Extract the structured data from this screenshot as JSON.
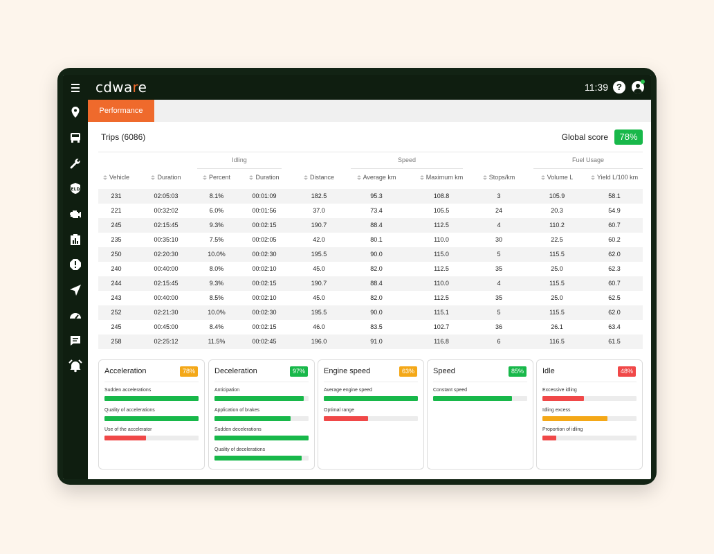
{
  "header": {
    "logo_prefix": "cdwa",
    "logo_accent": "r",
    "logo_suffix": "e",
    "time": "11:39",
    "help_label": "?"
  },
  "colors": {
    "brand_orange": "#ef6a2c",
    "dark_green": "#0f1e10",
    "good": "#18b84a",
    "warn": "#f4a818",
    "bad": "#f04848"
  },
  "sidebar": {
    "items": [
      {
        "icon": "map-pin-icon"
      },
      {
        "icon": "truck-icon"
      },
      {
        "icon": "wrench-icon"
      },
      {
        "icon": "eld-shield-icon"
      },
      {
        "icon": "engine-icon"
      },
      {
        "icon": "report-icon"
      },
      {
        "icon": "alert-icon"
      },
      {
        "icon": "navigation-icon"
      },
      {
        "icon": "speedometer-icon"
      },
      {
        "icon": "message-icon"
      },
      {
        "icon": "alarm-icon"
      }
    ]
  },
  "tabs": [
    {
      "label": "Performance",
      "active": true
    }
  ],
  "trips": {
    "title": "Trips (6086)",
    "global_score_label": "Global score",
    "global_score": "78%"
  },
  "table": {
    "groups": [
      "Idling",
      "Speed",
      "Fuel Usage"
    ],
    "columns": [
      "Vehicle",
      "Duration",
      "Percent",
      "Duration",
      "Distance",
      "Average km",
      "Maximum km",
      "Stops/km",
      "Volume L",
      "Yield L/100 km"
    ],
    "rows": [
      [
        "231",
        "02:05:03",
        "8.1%",
        "00:01:09",
        "182.5",
        "95.3",
        "108.8",
        "3",
        "105.9",
        "58.1"
      ],
      [
        "221",
        "00:32:02",
        "6.0%",
        "00:01:56",
        "37.0",
        "73.4",
        "105.5",
        "24",
        "20.3",
        "54.9"
      ],
      [
        "245",
        "02:15:45",
        "9.3%",
        "00:02:15",
        "190.7",
        "88.4",
        "112.5",
        "4",
        "110.2",
        "60.7"
      ],
      [
        "235",
        "00:35:10",
        "7.5%",
        "00:02:05",
        "42.0",
        "80.1",
        "110.0",
        "30",
        "22.5",
        "60.2"
      ],
      [
        "250",
        "02:20:30",
        "10.0%",
        "00:02:30",
        "195.5",
        "90.0",
        "115.0",
        "5",
        "115.5",
        "62.0"
      ],
      [
        "240",
        "00:40:00",
        "8.0%",
        "00:02:10",
        "45.0",
        "82.0",
        "112.5",
        "35",
        "25.0",
        "62.3"
      ],
      [
        "244",
        "02:15:45",
        "9.3%",
        "00:02:15",
        "190.7",
        "88.4",
        "110.0",
        "4",
        "115.5",
        "60.7"
      ],
      [
        "243",
        "00:40:00",
        "8.5%",
        "00:02:10",
        "45.0",
        "82.0",
        "112.5",
        "35",
        "25.0",
        "62.5"
      ],
      [
        "252",
        "02:21:30",
        "10.0%",
        "00:02:30",
        "195.5",
        "90.0",
        "115.1",
        "5",
        "115.5",
        "62.0"
      ],
      [
        "245",
        "00:45:00",
        "8.4%",
        "00:02:15",
        "46.0",
        "83.5",
        "102.7",
        "36",
        "26.1",
        "63.4"
      ],
      [
        "258",
        "02:25:12",
        "11.5%",
        "00:02:45",
        "196.0",
        "91.0",
        "116.8",
        "6",
        "116.5",
        "61.5"
      ]
    ]
  },
  "cards": [
    {
      "title": "Acceleration",
      "score": "78%",
      "score_color": "#f4a818",
      "metrics": [
        {
          "label": "Sudden accelerations",
          "fraction": 1.0,
          "color": "#18b84a"
        },
        {
          "label": "Quality of accelerations",
          "fraction": 1.0,
          "color": "#18b84a"
        },
        {
          "label": "Use of the accelerator",
          "fraction": 0.44,
          "color": "#f04848"
        }
      ]
    },
    {
      "title": "Deceleration",
      "score": "97%",
      "score_color": "#18b84a",
      "metrics": [
        {
          "label": "Anticipation",
          "fraction": 0.95,
          "color": "#18b84a"
        },
        {
          "label": "Application of brakes",
          "fraction": 0.81,
          "color": "#18b84a"
        },
        {
          "label": "Sudden decelerations",
          "fraction": 1.0,
          "color": "#18b84a"
        },
        {
          "label": "Quality of decelerations",
          "fraction": 0.93,
          "color": "#18b84a"
        }
      ]
    },
    {
      "title": "Engine speed",
      "score": "63%",
      "score_color": "#f4a818",
      "metrics": [
        {
          "label": "Average engine speed",
          "fraction": 1.0,
          "color": "#18b84a"
        },
        {
          "label": "Optimal range",
          "fraction": 0.47,
          "color": "#f04848"
        }
      ]
    },
    {
      "title": "Speed",
      "score": "85%",
      "score_color": "#18b84a",
      "metrics": [
        {
          "label": "Constant speed",
          "fraction": 0.84,
          "color": "#18b84a"
        }
      ]
    },
    {
      "title": "Idle",
      "score": "48%",
      "score_color": "#f04848",
      "metrics": [
        {
          "label": "Excessive idling",
          "fraction": 0.44,
          "color": "#f04848"
        },
        {
          "label": "Idling excess",
          "fraction": 0.69,
          "color": "#f4a818"
        },
        {
          "label": "Proportion of idling",
          "fraction": 0.15,
          "color": "#f04848"
        }
      ]
    }
  ]
}
